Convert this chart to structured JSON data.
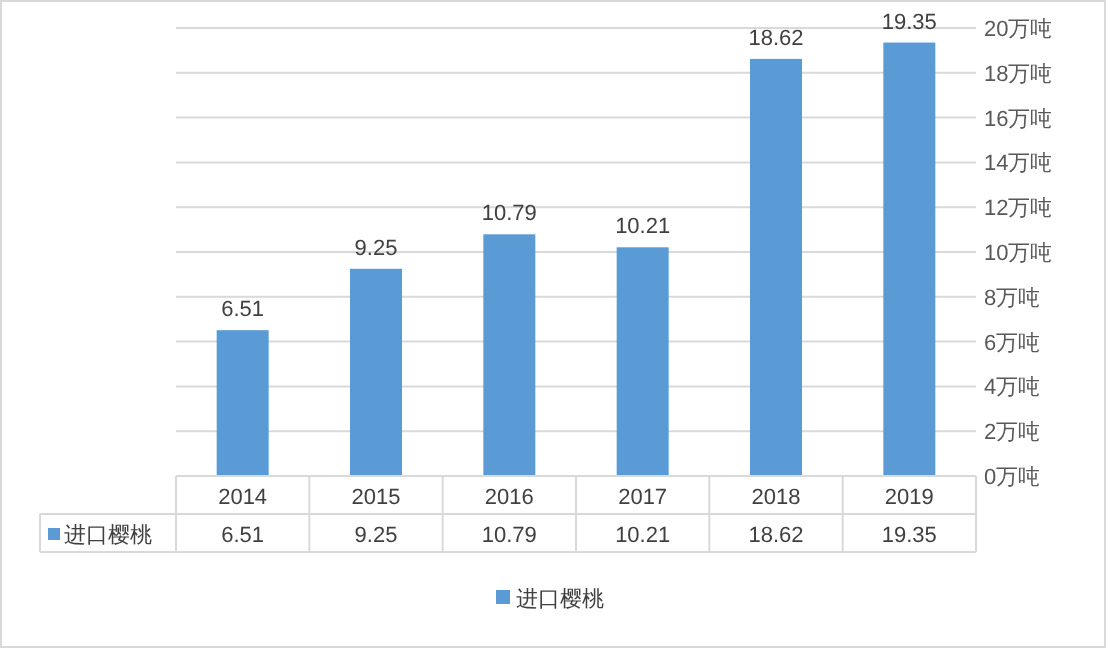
{
  "chart_data": {
    "type": "bar",
    "categories": [
      "2014",
      "2015",
      "2016",
      "2017",
      "2018",
      "2019"
    ],
    "series": [
      {
        "name": "进口樱桃",
        "color": "#5b9bd5",
        "values": [
          6.51,
          9.25,
          10.79,
          10.21,
          18.62,
          19.35
        ],
        "value_labels": [
          "6.51",
          "9.25",
          "10.79",
          "10.21",
          "18.62",
          "19.35"
        ]
      }
    ],
    "ylim": [
      0,
      20
    ],
    "yticks": [
      {
        "value": 0,
        "label": "0万吨"
      },
      {
        "value": 2,
        "label": "2万吨"
      },
      {
        "value": 4,
        "label": "4万吨"
      },
      {
        "value": 6,
        "label": "6万吨"
      },
      {
        "value": 8,
        "label": "8万吨"
      },
      {
        "value": 10,
        "label": "10万吨"
      },
      {
        "value": 12,
        "label": "12万吨"
      },
      {
        "value": 14,
        "label": "14万吨"
      },
      {
        "value": 16,
        "label": "16万吨"
      },
      {
        "value": 18,
        "label": "18万吨"
      },
      {
        "value": 20,
        "label": "20万吨"
      }
    ],
    "annotations": [
      "6.51",
      "9.25",
      "10.79",
      "10.21",
      "18.62",
      "19.35"
    ],
    "grid": "y",
    "data_labels": true,
    "legend": "bottom"
  }
}
